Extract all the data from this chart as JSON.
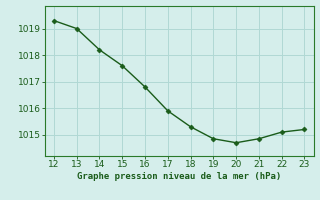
{
  "x": [
    12,
    13,
    14,
    15,
    16,
    17,
    18,
    19,
    20,
    21,
    22,
    23
  ],
  "y": [
    1019.3,
    1019.0,
    1018.2,
    1017.6,
    1016.8,
    1015.9,
    1015.3,
    1014.85,
    1014.7,
    1014.85,
    1015.1,
    1015.2
  ],
  "line_color": "#1a5c1a",
  "marker_color": "#1a5c1a",
  "bg_color": "#d5eeeb",
  "grid_color": "#b0d8d4",
  "xlabel": "Graphe pression niveau de la mer (hPa)",
  "xlabel_color": "#1a5c1a",
  "tick_color": "#1a5c1a",
  "spine_color": "#2a7a2a",
  "ylim": [
    1014.2,
    1019.85
  ],
  "xlim": [
    11.6,
    23.4
  ],
  "yticks": [
    1015,
    1016,
    1017,
    1018,
    1019
  ],
  "xticks": [
    12,
    13,
    14,
    15,
    16,
    17,
    18,
    19,
    20,
    21,
    22,
    23
  ]
}
